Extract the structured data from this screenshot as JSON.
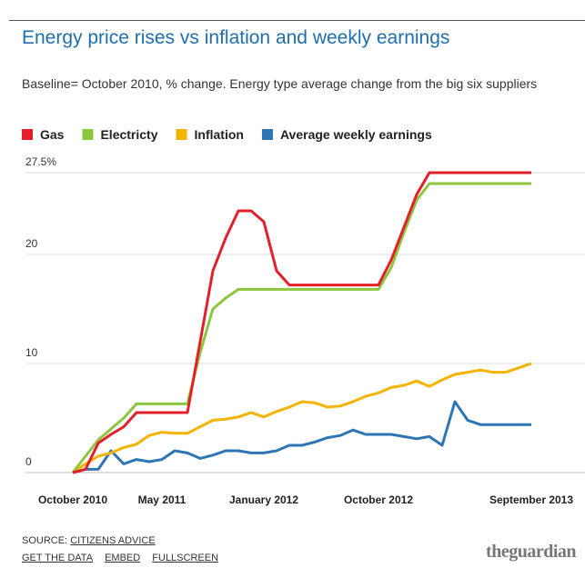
{
  "chart_data": {
    "type": "line",
    "title": "Energy price rises vs inflation and weekly earnings",
    "subtitle": "Baseline= October 2010, % change. Energy type average change from the big six suppliers",
    "categories": [
      "October 2010",
      null,
      null,
      null,
      null,
      null,
      null,
      "May 2011",
      null,
      null,
      null,
      null,
      null,
      null,
      null,
      "January 2012",
      null,
      null,
      null,
      null,
      null,
      null,
      null,
      null,
      "October 2012",
      null,
      null,
      null,
      null,
      null,
      null,
      null,
      null,
      null,
      null,
      null,
      "September 2013"
    ],
    "series": [
      {
        "name": "Gas",
        "color": "#e3202a",
        "values": [
          0,
          0.3,
          2.7,
          3.5,
          4.2,
          5.5,
          5.5,
          5.5,
          5.5,
          5.5,
          12,
          18.5,
          21.5,
          24,
          24,
          23,
          18.5,
          17.2,
          17.2,
          17.2,
          17.2,
          17.2,
          17.2,
          17.2,
          17.2,
          19.5,
          22.5,
          25.5,
          27.5,
          27.5,
          27.5,
          27.5,
          27.5,
          27.5,
          27.5,
          27.5,
          27.5
        ]
      },
      {
        "name": "Electricty",
        "color": "#8cc63e",
        "values": [
          0,
          1.5,
          3,
          4,
          5,
          6.3,
          6.3,
          6.3,
          6.3,
          6.3,
          11,
          15,
          16,
          16.8,
          16.8,
          16.8,
          16.8,
          16.8,
          16.8,
          16.8,
          16.8,
          16.8,
          16.8,
          16.8,
          16.8,
          18.8,
          22,
          25,
          26.5,
          26.5,
          26.5,
          26.5,
          26.5,
          26.5,
          26.5,
          26.5,
          26.5
        ]
      },
      {
        "name": "Inflation",
        "color": "#f4b400",
        "values": [
          0,
          0.8,
          1.5,
          1.8,
          2.3,
          2.6,
          3.4,
          3.7,
          3.6,
          3.6,
          4.2,
          4.8,
          4.9,
          5.1,
          5.5,
          5.1,
          5.6,
          6.0,
          6.5,
          6.4,
          6.0,
          6.1,
          6.5,
          7.0,
          7.3,
          7.8,
          8.0,
          8.4,
          7.9,
          8.5,
          9.0,
          9.2,
          9.4,
          9.2,
          9.2,
          9.6,
          10.0
        ]
      },
      {
        "name": "Average weekly earnings",
        "color": "#2e75b6",
        "values": [
          0,
          0.3,
          0.3,
          2.0,
          0.8,
          1.2,
          1.0,
          1.2,
          2.0,
          1.8,
          1.3,
          1.6,
          2.0,
          2.0,
          1.8,
          1.8,
          2.0,
          2.5,
          2.5,
          2.8,
          3.2,
          3.4,
          3.9,
          3.5,
          3.5,
          3.5,
          3.3,
          3.1,
          3.3,
          2.5,
          6.5,
          4.8,
          4.4,
          4.4,
          4.4,
          4.4,
          4.4
        ]
      }
    ],
    "ylim": [
      0,
      27.5
    ],
    "yticks": [
      0,
      10,
      20,
      {
        "value": 27.5,
        "label": "27.5%"
      }
    ],
    "grid": true,
    "source_label": "SOURCE:",
    "source": "CITIZENS ADVICE",
    "links": [
      "GET THE DATA",
      "EMBED",
      "FULLSCREEN"
    ],
    "logo": "theguardian"
  }
}
